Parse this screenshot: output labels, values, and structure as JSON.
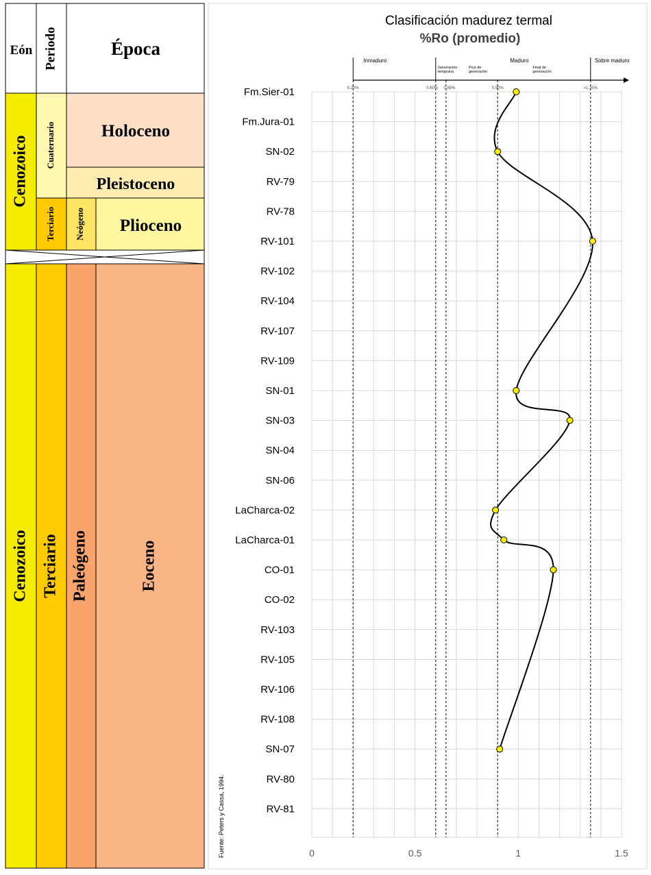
{
  "strat": {
    "headers": {
      "eon": "Eón",
      "period": "Periodo",
      "epoch": "Época"
    },
    "upper": {
      "eon": "Cenozoico",
      "cuaternario": "Cuaternario",
      "terciario": "Terciario",
      "neogeno": "Neógeno",
      "holoceno": "Holoceno",
      "pleistoceno": "Pleistoceno",
      "plioceno": "Plioceno"
    },
    "lower": {
      "eon": "Cenozoico",
      "period": "Terciario",
      "subperiod": "Paleógeno",
      "epoch": "Eoceno"
    },
    "colors": {
      "eon": "#f5ec00",
      "terciario": "#ffcb00",
      "cuaternario": "#fff8b0",
      "neogeno": "#ffe566",
      "paleogeno": "#f9a46b",
      "holoceno": "#fde0c5",
      "pleistoceno": "#ffecb0",
      "plioceno": "#fff7a0",
      "eoceno": "#fab586"
    }
  },
  "chart_data": {
    "type": "line",
    "title": "Clasificación madurez termal",
    "subtitle": "%Ro (promedio)",
    "xlim": [
      0,
      1.5
    ],
    "xticks": [
      "0",
      "0.5",
      "1",
      "1.5"
    ],
    "categories": [
      "Fm.Sier-01",
      "Fm.Jura-01",
      "SN-02",
      "RV-79",
      "RV-78",
      "RV-101",
      "RV-102",
      "RV-104",
      "RV-107",
      "RV-109",
      "SN-01",
      "SN-03",
      "SN-04",
      "SN-06",
      "LaCharca-02",
      "LaCharca-01",
      "CO-01",
      "CO-02",
      "RV-103",
      "RV-105",
      "RV-106",
      "RV-108",
      "SN-07",
      "RV-80",
      "RV-81"
    ],
    "points": [
      {
        "sample": "Fm.Sier-01",
        "ro": 0.99
      },
      {
        "sample": "SN-02",
        "ro": 0.9
      },
      {
        "sample": "RV-101",
        "ro": 1.36
      },
      {
        "sample": "SN-01",
        "ro": 0.99
      },
      {
        "sample": "SN-03",
        "ro": 1.25
      },
      {
        "sample": "LaCharca-02",
        "ro": 0.89
      },
      {
        "sample": "LaCharca-01",
        "ro": 0.93
      },
      {
        "sample": "CO-01",
        "ro": 1.17
      },
      {
        "sample": "SN-07",
        "ro": 0.91
      }
    ],
    "thresholds": [
      {
        "value": 0.2,
        "label": "0.20%"
      },
      {
        "value": 0.6,
        "label": "0.60%"
      },
      {
        "value": 0.65,
        "label": "0.65%"
      },
      {
        "value": 0.9,
        "label": "0.90%"
      },
      {
        "value": 1.35,
        "label": ">1.35%"
      }
    ],
    "zones": [
      {
        "label": "Inmaduro",
        "at": 0.25
      },
      {
        "label": "Maduro",
        "at": 0.96
      },
      {
        "label": "Sobre maduro",
        "at": 1.37
      }
    ],
    "subzones": [
      {
        "line1": "Generación",
        "line2": "temprana",
        "at": 0.61
      },
      {
        "line1": "Pico de",
        "line2": "generación",
        "at": 0.76
      },
      {
        "line1": "Final de",
        "line2": "generación",
        "at": 1.07
      }
    ],
    "source": "Fuente: Peters y Cassa, 1994.",
    "colors": {
      "marker_fill": "#ffee00",
      "line": "#000000",
      "grid": "#d9d9d9"
    }
  }
}
